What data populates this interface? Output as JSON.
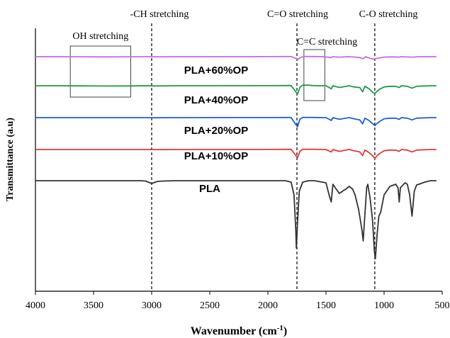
{
  "chart_data": {
    "type": "line",
    "xlabel": "Wavenumber (cm",
    "xlabel_superscript": "-1",
    "xlabel_suffix": ")",
    "ylabel": "Transmittance (a.u)",
    "xlim": [
      4000,
      500
    ],
    "xreverse": true,
    "x_ticks": [
      4000,
      3500,
      3000,
      2500,
      2000,
      1500,
      1000,
      500
    ],
    "grid": false,
    "legend": "labels placed on each trace",
    "annotations": [
      {
        "text": "-CH stretching",
        "x": 3000
      },
      {
        "text": "C=O stretching",
        "x": 1750
      },
      {
        "text": "C-O stretching",
        "x": 1080
      },
      {
        "text": "OH stretching",
        "x_range": [
          3700,
          3180
        ]
      },
      {
        "text": "C=C stretching",
        "x_range": [
          1690,
          1510
        ]
      }
    ],
    "series": [
      {
        "name": "PLA+60%OP",
        "color": "#c46ce0",
        "offset": 0,
        "points": [
          [
            4000,
            0
          ],
          [
            3800,
            0
          ],
          [
            3600,
            -0.2
          ],
          [
            3400,
            -0.5
          ],
          [
            3200,
            -0.2
          ],
          [
            3050,
            0
          ],
          [
            2950,
            -0.3
          ],
          [
            2800,
            0
          ],
          [
            2000,
            0.1
          ],
          [
            1800,
            0.3
          ],
          [
            1760,
            -4
          ],
          [
            1740,
            -6
          ],
          [
            1720,
            -2
          ],
          [
            1690,
            0.5
          ],
          [
            1600,
            0.3
          ],
          [
            1520,
            0
          ],
          [
            1455,
            -2
          ],
          [
            1440,
            0
          ],
          [
            1390,
            -1
          ],
          [
            1300,
            0
          ],
          [
            1250,
            -1
          ],
          [
            1210,
            -2
          ],
          [
            1180,
            -5
          ],
          [
            1160,
            0
          ],
          [
            1130,
            -3
          ],
          [
            1090,
            -6
          ],
          [
            1080,
            -5
          ],
          [
            1060,
            -4
          ],
          [
            1040,
            -3
          ],
          [
            1000,
            -1
          ],
          [
            950,
            -0.5
          ],
          [
            900,
            -0.5
          ],
          [
            870,
            -1
          ],
          [
            850,
            0
          ],
          [
            760,
            -1
          ],
          [
            700,
            0
          ],
          [
            600,
            0
          ],
          [
            550,
            0
          ]
        ]
      },
      {
        "name": "PLA+40%OP",
        "color": "#1f9a4a",
        "offset": 0,
        "points": [
          [
            4000,
            0
          ],
          [
            3800,
            0
          ],
          [
            3600,
            -0.2
          ],
          [
            3400,
            -0.5
          ],
          [
            3200,
            -0.3
          ],
          [
            3050,
            0
          ],
          [
            2950,
            -0.3
          ],
          [
            2800,
            0
          ],
          [
            2000,
            0.1
          ],
          [
            1800,
            0.3
          ],
          [
            1760,
            -10
          ],
          [
            1745,
            -14
          ],
          [
            1725,
            -3
          ],
          [
            1700,
            1
          ],
          [
            1650,
            1
          ],
          [
            1600,
            0
          ],
          [
            1500,
            0
          ],
          [
            1455,
            -5
          ],
          [
            1440,
            0
          ],
          [
            1385,
            -3
          ],
          [
            1360,
            -2
          ],
          [
            1300,
            0
          ],
          [
            1260,
            -2
          ],
          [
            1210,
            -3
          ],
          [
            1185,
            -10
          ],
          [
            1165,
            -1
          ],
          [
            1130,
            -5
          ],
          [
            1090,
            -12
          ],
          [
            1080,
            -13
          ],
          [
            1060,
            -9
          ],
          [
            1040,
            -6
          ],
          [
            1000,
            -2
          ],
          [
            950,
            -1
          ],
          [
            900,
            -1
          ],
          [
            870,
            -3
          ],
          [
            850,
            0
          ],
          [
            800,
            -1
          ],
          [
            760,
            -4
          ],
          [
            720,
            -1
          ],
          [
            600,
            0
          ],
          [
            550,
            0
          ]
        ]
      },
      {
        "name": "PLA+20%OP",
        "color": "#1f5fd6",
        "offset": 0,
        "points": [
          [
            4000,
            0
          ],
          [
            3800,
            0
          ],
          [
            3600,
            0
          ],
          [
            3400,
            0
          ],
          [
            3200,
            0
          ],
          [
            3050,
            0
          ],
          [
            2950,
            -0.2
          ],
          [
            2800,
            0
          ],
          [
            2000,
            0.1
          ],
          [
            1800,
            0.3
          ],
          [
            1760,
            -12
          ],
          [
            1745,
            -16
          ],
          [
            1725,
            -3
          ],
          [
            1700,
            0.5
          ],
          [
            1600,
            0.3
          ],
          [
            1500,
            0
          ],
          [
            1455,
            -5
          ],
          [
            1440,
            0
          ],
          [
            1385,
            -3
          ],
          [
            1360,
            -2
          ],
          [
            1300,
            0
          ],
          [
            1260,
            -2
          ],
          [
            1210,
            -4
          ],
          [
            1185,
            -11
          ],
          [
            1165,
            -1
          ],
          [
            1130,
            -5
          ],
          [
            1090,
            -12
          ],
          [
            1080,
            -14
          ],
          [
            1060,
            -10
          ],
          [
            1040,
            -7
          ],
          [
            1000,
            -2
          ],
          [
            950,
            -1
          ],
          [
            900,
            -1
          ],
          [
            870,
            -3
          ],
          [
            850,
            0
          ],
          [
            800,
            -1
          ],
          [
            760,
            -4
          ],
          [
            720,
            -1
          ],
          [
            600,
            0
          ],
          [
            550,
            0
          ]
        ]
      },
      {
        "name": "PLA+10%OP",
        "color": "#e03a3a",
        "offset": 0,
        "points": [
          [
            4000,
            0
          ],
          [
            3800,
            0
          ],
          [
            3600,
            0
          ],
          [
            3400,
            0
          ],
          [
            3200,
            0
          ],
          [
            3050,
            0
          ],
          [
            2950,
            -0.2
          ],
          [
            2800,
            0
          ],
          [
            2000,
            0.1
          ],
          [
            1800,
            0.3
          ],
          [
            1760,
            -10
          ],
          [
            1745,
            -14
          ],
          [
            1725,
            -3
          ],
          [
            1700,
            0.5
          ],
          [
            1600,
            0.3
          ],
          [
            1500,
            0
          ],
          [
            1455,
            -4
          ],
          [
            1440,
            0
          ],
          [
            1385,
            -3
          ],
          [
            1360,
            -2
          ],
          [
            1300,
            0
          ],
          [
            1260,
            -2
          ],
          [
            1210,
            -4
          ],
          [
            1185,
            -10
          ],
          [
            1165,
            -1
          ],
          [
            1130,
            -5
          ],
          [
            1090,
            -12
          ],
          [
            1080,
            -15
          ],
          [
            1060,
            -10
          ],
          [
            1040,
            -7
          ],
          [
            1000,
            -2
          ],
          [
            950,
            -1
          ],
          [
            900,
            -1
          ],
          [
            870,
            -3
          ],
          [
            850,
            0
          ],
          [
            800,
            -1
          ],
          [
            760,
            -4
          ],
          [
            720,
            -1
          ],
          [
            600,
            0
          ],
          [
            550,
            0
          ]
        ]
      },
      {
        "name": "PLA",
        "color": "#333333",
        "offset": 0,
        "points": [
          [
            4000,
            0
          ],
          [
            3500,
            0
          ],
          [
            3100,
            0
          ],
          [
            3050,
            -0.5
          ],
          [
            3000,
            -4
          ],
          [
            2950,
            -1
          ],
          [
            2900,
            -0.5
          ],
          [
            2800,
            0
          ],
          [
            2000,
            0
          ],
          [
            1850,
            0
          ],
          [
            1800,
            -2
          ],
          [
            1775,
            -20
          ],
          [
            1760,
            -70
          ],
          [
            1755,
            -95
          ],
          [
            1745,
            -60
          ],
          [
            1730,
            -15
          ],
          [
            1700,
            -2
          ],
          [
            1650,
            0
          ],
          [
            1600,
            0
          ],
          [
            1500,
            -3
          ],
          [
            1470,
            -22
          ],
          [
            1455,
            -30
          ],
          [
            1440,
            -5
          ],
          [
            1420,
            -10
          ],
          [
            1385,
            -18
          ],
          [
            1360,
            -15
          ],
          [
            1330,
            -12
          ],
          [
            1300,
            -8
          ],
          [
            1270,
            -12
          ],
          [
            1250,
            -20
          ],
          [
            1220,
            -40
          ],
          [
            1210,
            -50
          ],
          [
            1190,
            -70
          ],
          [
            1180,
            -85
          ],
          [
            1170,
            -60
          ],
          [
            1150,
            -10
          ],
          [
            1140,
            -5
          ],
          [
            1120,
            -25
          ],
          [
            1100,
            -55
          ],
          [
            1090,
            -80
          ],
          [
            1085,
            -98
          ],
          [
            1075,
            -110
          ],
          [
            1060,
            -75
          ],
          [
            1045,
            -50
          ],
          [
            1030,
            -45
          ],
          [
            1000,
            -20
          ],
          [
            950,
            -8
          ],
          [
            900,
            -5
          ],
          [
            880,
            -10
          ],
          [
            870,
            -30
          ],
          [
            860,
            -10
          ],
          [
            820,
            -3
          ],
          [
            800,
            -5
          ],
          [
            780,
            -20
          ],
          [
            760,
            -50
          ],
          [
            740,
            -15
          ],
          [
            720,
            -6
          ],
          [
            700,
            -5
          ],
          [
            650,
            -2
          ],
          [
            600,
            0
          ],
          [
            550,
            0
          ]
        ]
      }
    ],
    "vlines": [
      3000,
      1750,
      1080
    ]
  }
}
